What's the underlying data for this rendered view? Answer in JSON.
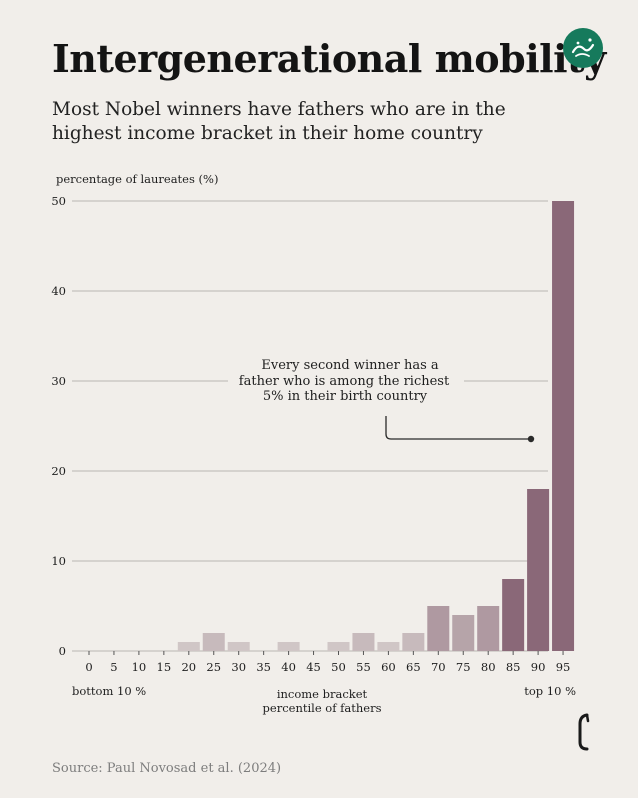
{
  "header": {
    "title": "Intergenerational mobility",
    "subtitle": "Most Nobel winners have fathers who are in the highest income bracket in their home country"
  },
  "logo": {
    "icon": "green-circle-calligraphy-logo",
    "color": "#167a5c"
  },
  "chart_data": {
    "type": "bar",
    "ylabel": "percentage of laureates (%)",
    "xlabel_lines": [
      "income bracket",
      "percentile of fathers"
    ],
    "x_left_note": "bottom 10 %",
    "x_right_note": "top 10 %",
    "categories": [
      "0",
      "5",
      "10",
      "15",
      "20",
      "25",
      "30",
      "35",
      "40",
      "45",
      "50",
      "55",
      "60",
      "65",
      "70",
      "75",
      "80",
      "85",
      "90",
      "95"
    ],
    "values": [
      0,
      0,
      0,
      0,
      1,
      2,
      1,
      0,
      1,
      0,
      1,
      2,
      1,
      2,
      5,
      4,
      5,
      8,
      18,
      50
    ],
    "ylim": [
      0,
      50
    ],
    "yticks": [
      0,
      10,
      20,
      30,
      40,
      50
    ],
    "grid": true,
    "annotation": {
      "lines": [
        "Every second winner has a",
        "father who is among the richest",
        "5% in their birth country"
      ],
      "points_to_category": "90"
    },
    "colors": {
      "low": "#dcd6d3",
      "high": "#8a6878",
      "grid": "#b9b5b1",
      "text": "#1e1e1e"
    }
  },
  "footer": {
    "source": "Source: Paul Novosad et al. (2024)",
    "brand_icon": "bracket-mark-icon"
  }
}
